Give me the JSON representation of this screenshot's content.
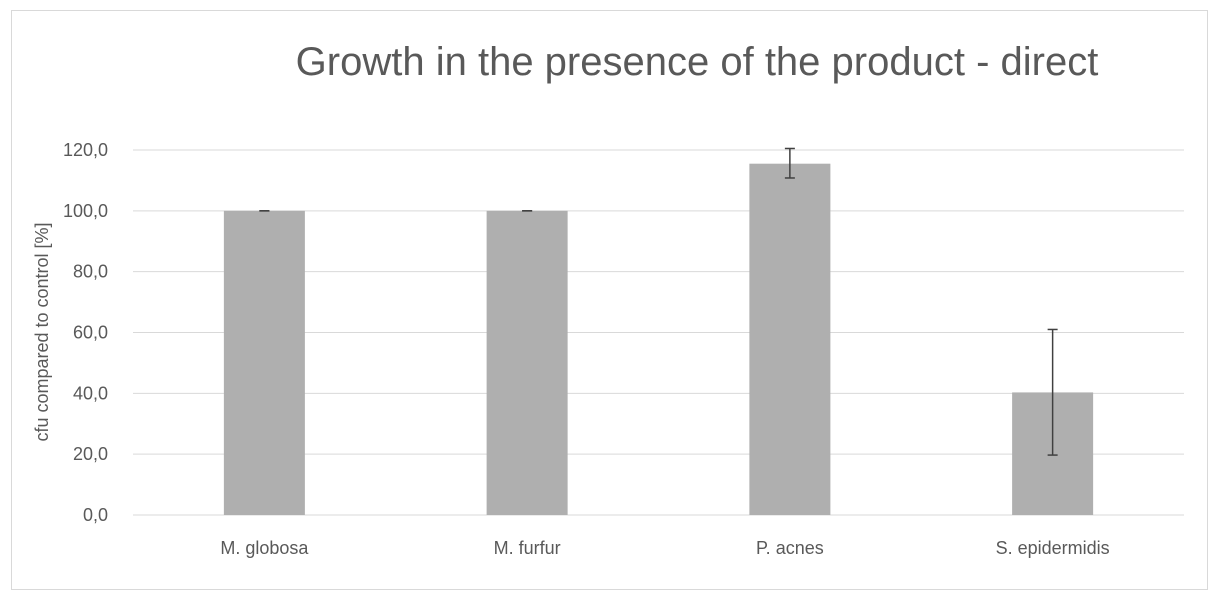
{
  "chart_data": {
    "type": "bar",
    "title": "Growth in the presence of the product - direct",
    "ylabel": "cfu compared to control [%]",
    "xlabel": "",
    "categories": [
      "M. globosa",
      "M. furfur",
      "P. acnes",
      "S. epidermidis"
    ],
    "values": [
      100.0,
      100.0,
      115.5,
      40.3
    ],
    "error_low": [
      100.0,
      100.0,
      110.8,
      19.7
    ],
    "error_high": [
      100.0,
      100.0,
      120.5,
      61.0
    ],
    "ylim": [
      0,
      120
    ],
    "yticks": [
      "0,0",
      "20,0",
      "40,0",
      "60,0",
      "80,0",
      "100,0",
      "120,0"
    ],
    "grid": true,
    "legend": "none",
    "colors": {
      "bar": "#afafaf",
      "grid": "#d9d9d9",
      "text": "#595959",
      "error": "#404040"
    }
  }
}
